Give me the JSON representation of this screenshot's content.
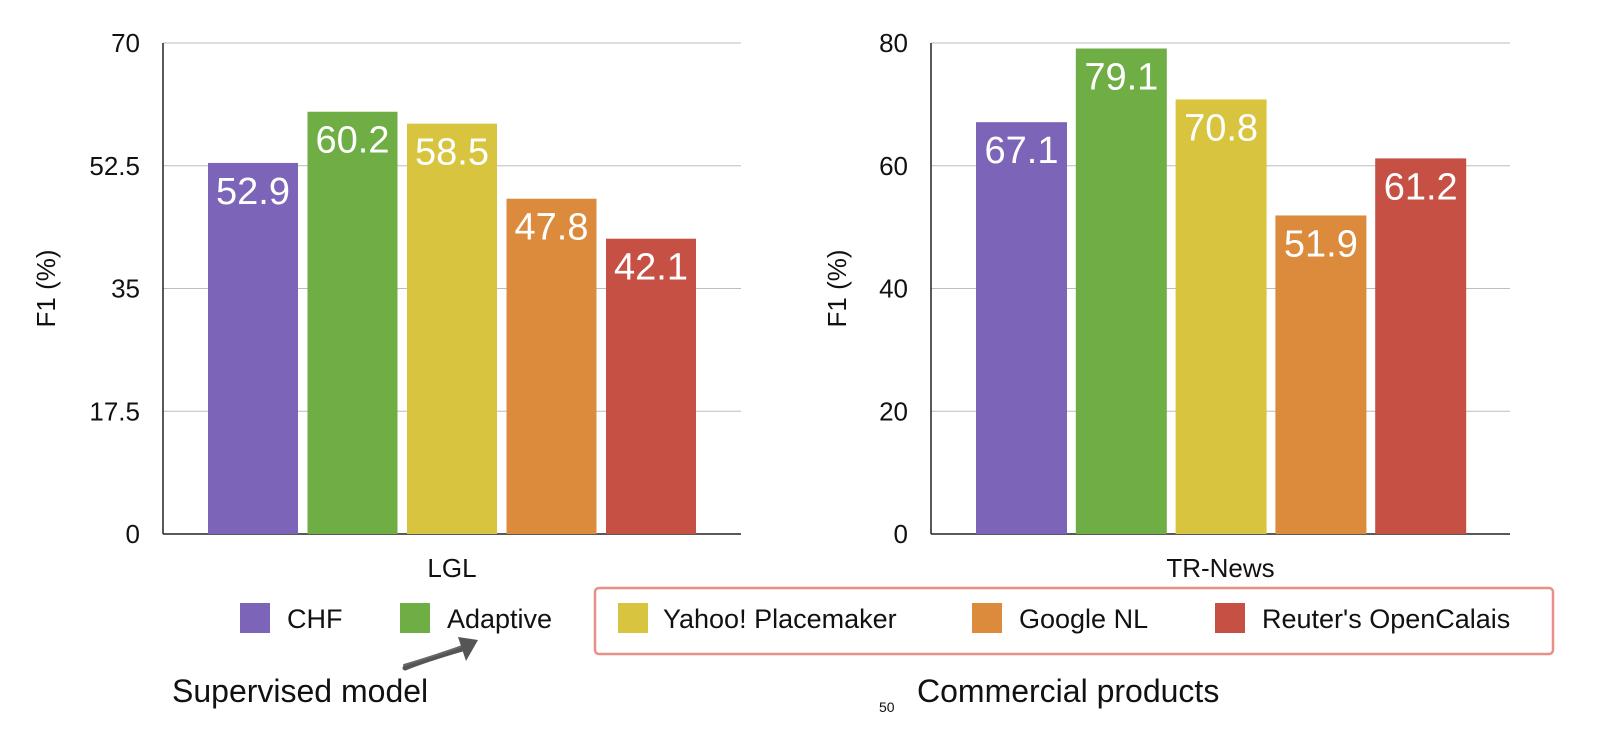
{
  "chart_data": [
    {
      "type": "bar",
      "xlabel": "LGL",
      "ylabel": "F1 (%)",
      "ylim": [
        0,
        70
      ],
      "yticks": [
        "0",
        "17.5",
        "35",
        "52.5",
        "70"
      ],
      "grid": true,
      "categories": [
        "CHF",
        "Adaptive",
        "Yahoo! Placemaker",
        "Google NL",
        "Reuter's OpenCalais"
      ],
      "values": [
        52.9,
        60.2,
        58.5,
        47.8,
        42.1
      ],
      "data_labels": [
        "52.9",
        "60.2",
        "58.5",
        "47.8",
        "42.1"
      ]
    },
    {
      "type": "bar",
      "xlabel": "TR-News",
      "ylabel": "F1 (%)",
      "ylim": [
        0,
        80
      ],
      "yticks": [
        "0",
        "20",
        "40",
        "60",
        "80"
      ],
      "grid": true,
      "categories": [
        "CHF",
        "Adaptive",
        "Yahoo! Placemaker",
        "Google NL",
        "Reuter's OpenCalais"
      ],
      "values": [
        67.1,
        79.1,
        70.8,
        51.9,
        61.2
      ],
      "data_labels": [
        "67.1",
        "79.1",
        "70.8",
        "51.9",
        "61.2"
      ]
    }
  ],
  "colors": {
    "CHF": "#7c64b8",
    "Adaptive": "#6fae44",
    "Yahoo! Placemaker": "#d8c43e",
    "Google NL": "#dc8a3c",
    "Reuter's OpenCalais": "#c65043",
    "highlight_box": "#e89088",
    "arrow": "#555555"
  },
  "legend": {
    "position": "bottom",
    "items": [
      "CHF",
      "Adaptive",
      "Yahoo! Placemaker",
      "Google NL",
      "Reuter's OpenCalais"
    ]
  },
  "annotations": {
    "supervised": "Supervised model",
    "commercial": "Commercial products"
  },
  "page_number": "50"
}
